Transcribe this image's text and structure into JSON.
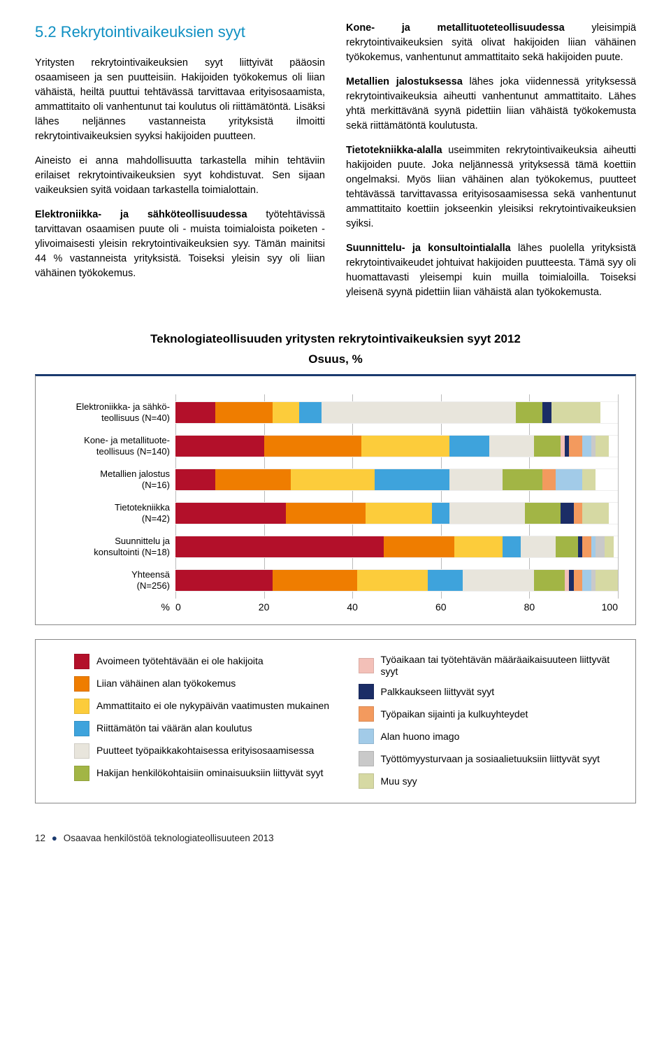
{
  "heading": {
    "number": "5.2",
    "title": "Rekrytointivaikeuksien syyt",
    "color": "#0e8fc2"
  },
  "left_paragraphs": [
    "Yritysten rekrytointivaikeuksien syyt liittyivät pääosin osaamiseen ja sen puutteisiin. Hakijoiden työkokemus oli liian vähäistä, heiltä puuttui tehtävässä tarvittavaa erityisosaamista, ammattitaito oli vanhentunut tai koulutus oli riittämätöntä. Lisäksi lähes neljännes vastanneista yrityksistä ilmoitti rekrytointivaikeuksien syyksi hakijoiden puutteen.",
    "Aineisto ei anna mahdollisuutta tarkastella mihin tehtäviin erilaiset rekrytointivaikeuksien syyt kohdistuvat. Sen sijaan vaikeuksien syitä voidaan tarkastella toimialottain."
  ],
  "left_para3": {
    "bold": "Elektroniikka- ja sähköteollisuudessa",
    "rest": " työtehtävissä tarvittavan osaamisen puute oli - muista toimialoista poiketen - ylivoimaisesti yleisin rekrytointivaikeuksien syy. Tämän mainitsi 44 % vastanneista yrityksistä. Toiseksi yleisin syy oli liian vähäinen työkokemus."
  },
  "right_para1": {
    "bold": "Kone- ja metallituoteteollisuudessa",
    "rest": " yleisimpiä rekrytointivaikeuksien syitä olivat hakijoiden liian vähäinen työkokemus, vanhentunut ammattitaito sekä hakijoiden puute."
  },
  "right_para2": {
    "bold": "Metallien jalostuksessa",
    "rest": " lähes joka viidennessä yrityksessä rekrytointivaikeuksia aiheutti vanhentunut ammattitaito. Lähes yhtä merkittävänä syynä pidettiin liian vähäistä työkokemusta sekä riittämätöntä koulutusta."
  },
  "right_para3": {
    "bold": "Tietotekniikka-alalla",
    "rest": " useimmiten rekrytointivaikeuksia aiheutti hakijoiden puute. Joka neljännessä yrityksessä tämä koettiin ongelmaksi. Myös liian vähäinen alan työkokemus, puutteet tehtävässä tarvittavassa erityisosaamisessa sekä vanhentunut ammattitaito koettiin jokseenkin yleisiksi rekrytointivaikeuksien syiksi."
  },
  "right_para4": {
    "bold": "Suunnittelu- ja konsultointialalla",
    "rest": " lähes puolella yrityksistä rekrytointivaikeudet johtuivat hakijoiden puutteesta. Tämä syy oli huomattavasti yleisempi kuin muilla toimialoilla. Toiseksi yleisenä syynä pidettiin liian vähäistä alan työkokemusta."
  },
  "chart": {
    "title": "Teknologiateollisuuden yritysten rekrytointivaikeuksien syyt 2012",
    "subtitle": "Osuus, %",
    "axis_label": "%",
    "ticks": [
      "0",
      "20",
      "40",
      "60",
      "80",
      "100"
    ],
    "colors": {
      "c1": "#b3102a",
      "c2": "#ef7d00",
      "c3": "#fccc3b",
      "c4": "#3ea3dc",
      "c5": "#e8e5dc",
      "c6": "#a2b545",
      "c7": "#f3c0b8",
      "c8": "#1b2d66",
      "c9": "#f39a5e",
      "c10": "#a2cbe8",
      "c11": "#c9c9c9",
      "c12": "#d6d9a3"
    },
    "rows": [
      {
        "label_l1": "Elektroniikka- ja sähkö-",
        "label_l2": "teollisuus (N=40)",
        "segments": [
          {
            "c": "c1",
            "v": 9
          },
          {
            "c": "c2",
            "v": 13
          },
          {
            "c": "c3",
            "v": 6
          },
          {
            "c": "c4",
            "v": 5
          },
          {
            "c": "c5",
            "v": 44
          },
          {
            "c": "c6",
            "v": 6
          },
          {
            "c": "c7",
            "v": 0
          },
          {
            "c": "c8",
            "v": 2
          },
          {
            "c": "c9",
            "v": 0
          },
          {
            "c": "c10",
            "v": 0
          },
          {
            "c": "c11",
            "v": 0
          },
          {
            "c": "c12",
            "v": 11
          }
        ]
      },
      {
        "label_l1": "Kone- ja metallituote-",
        "label_l2": "teollisuus (N=140)",
        "segments": [
          {
            "c": "c1",
            "v": 20
          },
          {
            "c": "c2",
            "v": 22
          },
          {
            "c": "c3",
            "v": 20
          },
          {
            "c": "c4",
            "v": 9
          },
          {
            "c": "c5",
            "v": 10
          },
          {
            "c": "c6",
            "v": 6
          },
          {
            "c": "c7",
            "v": 1
          },
          {
            "c": "c8",
            "v": 1
          },
          {
            "c": "c9",
            "v": 3
          },
          {
            "c": "c10",
            "v": 2
          },
          {
            "c": "c11",
            "v": 1
          },
          {
            "c": "c12",
            "v": 3
          }
        ]
      },
      {
        "label_l1": "Metallien jalostus",
        "label_l2": "(N=16)",
        "segments": [
          {
            "c": "c1",
            "v": 9
          },
          {
            "c": "c2",
            "v": 17
          },
          {
            "c": "c3",
            "v": 19
          },
          {
            "c": "c4",
            "v": 17
          },
          {
            "c": "c5",
            "v": 12
          },
          {
            "c": "c6",
            "v": 9
          },
          {
            "c": "c7",
            "v": 0
          },
          {
            "c": "c8",
            "v": 0
          },
          {
            "c": "c9",
            "v": 3
          },
          {
            "c": "c10",
            "v": 6
          },
          {
            "c": "c11",
            "v": 0
          },
          {
            "c": "c12",
            "v": 3
          }
        ]
      },
      {
        "label_l1": "Tietotekniikka",
        "label_l2": "(N=42)",
        "segments": [
          {
            "c": "c1",
            "v": 25
          },
          {
            "c": "c2",
            "v": 18
          },
          {
            "c": "c3",
            "v": 15
          },
          {
            "c": "c4",
            "v": 4
          },
          {
            "c": "c5",
            "v": 17
          },
          {
            "c": "c6",
            "v": 8
          },
          {
            "c": "c7",
            "v": 0
          },
          {
            "c": "c8",
            "v": 3
          },
          {
            "c": "c9",
            "v": 2
          },
          {
            "c": "c10",
            "v": 0
          },
          {
            "c": "c11",
            "v": 0
          },
          {
            "c": "c12",
            "v": 6
          }
        ]
      },
      {
        "label_l1": "Suunnittelu ja",
        "label_l2": "konsultointi (N=18)",
        "segments": [
          {
            "c": "c1",
            "v": 47
          },
          {
            "c": "c2",
            "v": 16
          },
          {
            "c": "c3",
            "v": 11
          },
          {
            "c": "c4",
            "v": 4
          },
          {
            "c": "c5",
            "v": 8
          },
          {
            "c": "c6",
            "v": 5
          },
          {
            "c": "c7",
            "v": 0
          },
          {
            "c": "c8",
            "v": 1
          },
          {
            "c": "c9",
            "v": 2
          },
          {
            "c": "c10",
            "v": 1
          },
          {
            "c": "c11",
            "v": 2
          },
          {
            "c": "c12",
            "v": 2
          }
        ]
      },
      {
        "label_l1": "Yhteensä",
        "label_l2": "(N=256)",
        "segments": [
          {
            "c": "c1",
            "v": 22
          },
          {
            "c": "c2",
            "v": 19
          },
          {
            "c": "c3",
            "v": 16
          },
          {
            "c": "c4",
            "v": 8
          },
          {
            "c": "c5",
            "v": 16
          },
          {
            "c": "c6",
            "v": 7
          },
          {
            "c": "c7",
            "v": 1
          },
          {
            "c": "c8",
            "v": 1
          },
          {
            "c": "c9",
            "v": 2
          },
          {
            "c": "c10",
            "v": 2
          },
          {
            "c": "c11",
            "v": 1
          },
          {
            "c": "c12",
            "v": 5
          }
        ]
      }
    ]
  },
  "legend": {
    "left": [
      {
        "c": "c1",
        "t": "Avoimeen työtehtävään ei ole hakijoita"
      },
      {
        "c": "c2",
        "t": "Liian vähäinen alan työkokemus"
      },
      {
        "c": "c3",
        "t": "Ammattitaito ei ole nykypäivän vaatimusten mukainen"
      },
      {
        "c": "c4",
        "t": "Riittämätön tai väärän alan koulutus"
      },
      {
        "c": "c5",
        "t": "Puutteet työpaikkakohtaisessa erityisosaamisessa"
      },
      {
        "c": "c6",
        "t": "Hakijan henkilökohtaisiin ominaisuuksiin liittyvät syyt"
      }
    ],
    "right": [
      {
        "c": "c7",
        "t": "Työaikaan tai työtehtävän määräaikaisuuteen liittyvät syyt"
      },
      {
        "c": "c8",
        "t": "Palkkaukseen liittyvät syyt"
      },
      {
        "c": "c9",
        "t": "Työpaikan sijainti ja kulkuyhteydet"
      },
      {
        "c": "c10",
        "t": "Alan huono imago"
      },
      {
        "c": "c11",
        "t": "Työttömyysturvaan ja sosiaalietuuksiin liittyvät syyt"
      },
      {
        "c": "c12",
        "t": "Muu syy"
      }
    ]
  },
  "footer": {
    "page": "12",
    "text": "Osaavaa henkilöstöä teknologiateollisuuteen 2013"
  }
}
